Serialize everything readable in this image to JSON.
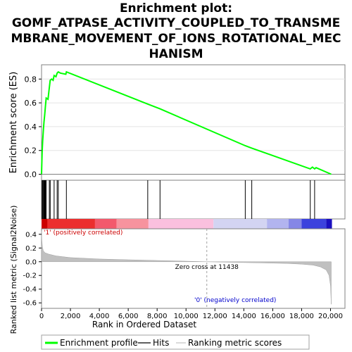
{
  "title_lines": [
    "Enrichment plot:",
    "GOMF_ATPASE_ACTIVITY_COUPLED_TO_TRANSME",
    "MBRANE_MOVEMENT_OF_IONS_ROTATIONAL_MEC",
    "HANISM"
  ],
  "chart_data": {
    "type": "line",
    "es_panel": {
      "ylabel": "Enrichment score (ES)",
      "y_ticks": [
        0.0,
        0.2,
        0.4,
        0.6,
        0.8
      ],
      "ylim": [
        -0.05,
        0.92
      ],
      "xlim": [
        0,
        21000
      ],
      "series": {
        "name": "Enrichment profile",
        "color": "#00ff00",
        "x": [
          0,
          40,
          80,
          130,
          170,
          220,
          270,
          320,
          450,
          540,
          600,
          700,
          800,
          870,
          1000,
          1080,
          1160,
          1300,
          1680,
          1720,
          7350,
          8200,
          14100,
          14550,
          18600,
          18750,
          18900,
          19000,
          20050
        ],
        "y": [
          0.0,
          0.18,
          0.28,
          0.38,
          0.44,
          0.5,
          0.57,
          0.64,
          0.63,
          0.73,
          0.79,
          0.8,
          0.79,
          0.83,
          0.82,
          0.85,
          0.86,
          0.85,
          0.84,
          0.86,
          0.59,
          0.55,
          0.24,
          0.22,
          0.045,
          0.06,
          0.045,
          0.055,
          0.0
        ]
      }
    },
    "hits": [
      40,
      80,
      130,
      170,
      220,
      270,
      320,
      540,
      600,
      870,
      1080,
      1160,
      1720,
      7350,
      8200,
      14100,
      14550,
      18600,
      18900
    ],
    "color_bar": {
      "label_pos": "'1' (positively correlated)",
      "label_neg": "'0' (negatively correlated)",
      "pos_color": "#cc0000",
      "neg_color": "#0000cc"
    },
    "ranked_metric": {
      "ylabel": "Ranked list metric (Signal2Noise)",
      "y_ticks": [
        -0.6,
        -0.4,
        -0.2,
        0.0,
        0.2,
        0.4
      ],
      "ylim": [
        -0.68,
        0.48
      ],
      "x": [
        0,
        20,
        60,
        120,
        250,
        500,
        1000,
        2000,
        4000,
        6000,
        8000,
        10000,
        11438,
        13000,
        15000,
        17000,
        18000,
        18800,
        19300,
        19700,
        19900,
        20000,
        20050
      ],
      "y": [
        0.45,
        0.32,
        0.22,
        0.16,
        0.13,
        0.11,
        0.085,
        0.06,
        0.04,
        0.028,
        0.018,
        0.008,
        0.0,
        -0.008,
        -0.016,
        -0.025,
        -0.035,
        -0.05,
        -0.075,
        -0.12,
        -0.2,
        -0.35,
        -0.62
      ],
      "zero_cross_label": "Zero cross at 11438",
      "zero_cross": 11438
    },
    "x_ticks": [
      0,
      2000,
      4000,
      6000,
      8000,
      10000,
      12000,
      14000,
      16000,
      18000,
      20000
    ],
    "x_tick_labels": [
      "0",
      "2,000",
      "4,000",
      "6,000",
      "8,000",
      "10,000",
      "12,000",
      "14,000",
      "16,000",
      "18,000",
      "20,000"
    ],
    "xlabel": "Rank in Ordered Dataset",
    "legend": {
      "position": "bottom",
      "items": [
        {
          "label": "Enrichment profile",
          "color": "#00ff00",
          "style": "thick-line"
        },
        {
          "label": "Hits",
          "color": "#000000",
          "style": "line"
        },
        {
          "label": "Ranking metric scores",
          "color": "#c0c0c0",
          "style": "line"
        }
      ]
    }
  }
}
